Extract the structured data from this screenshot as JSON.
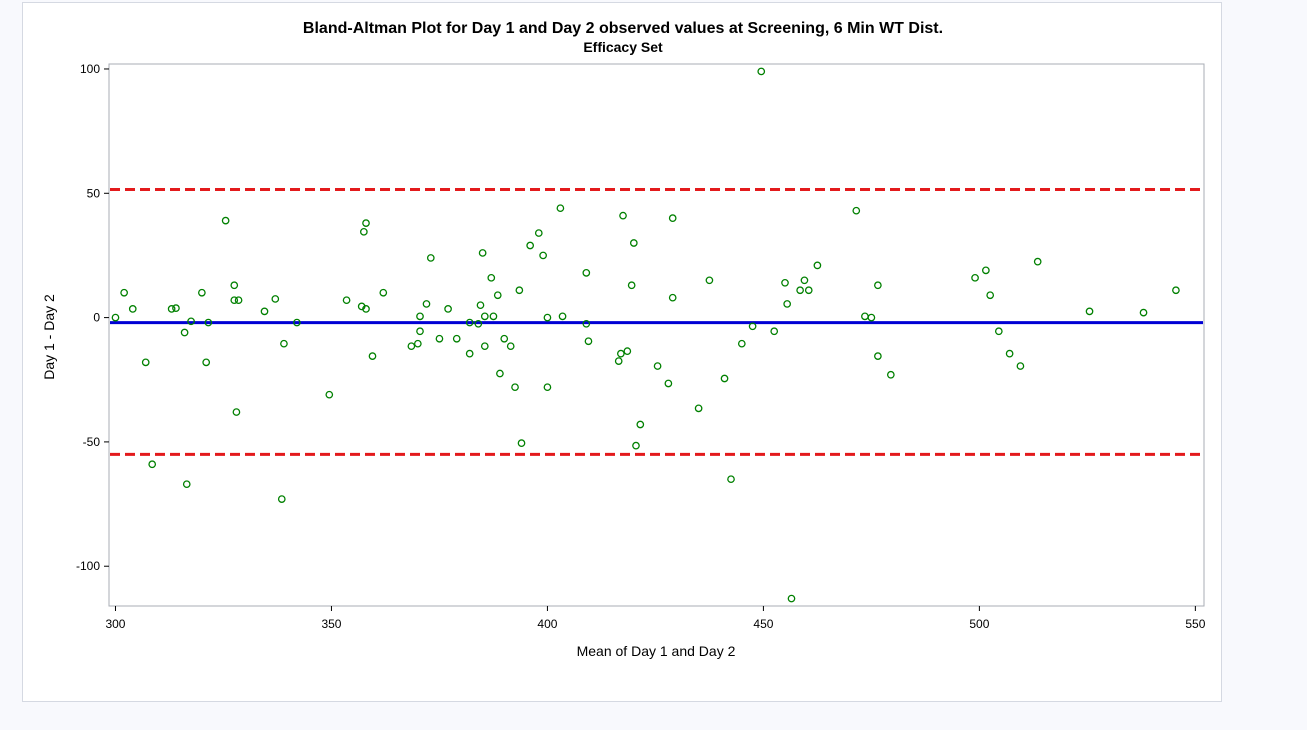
{
  "chart_data": {
    "type": "scatter",
    "title": "Bland-Altman Plot for Day 1 and Day 2 observed values at Screening, 6 Min WT Dist.",
    "subtitle": "Efficacy Set",
    "xlabel": "Mean of Day 1 and Day 2",
    "ylabel": "Day 1 - Day 2",
    "xlim": [
      298.5,
      552
    ],
    "ylim": [
      -116,
      102
    ],
    "xticks": [
      "300",
      "350",
      "400",
      "450",
      "500",
      "550"
    ],
    "yticks": [
      "100",
      "50",
      "0",
      "-50",
      "-100"
    ],
    "grid": false,
    "reference_lines": [
      {
        "name": "Upper limit of agreement",
        "y": 51.5,
        "color": "#e31a1c",
        "style": "dashed"
      },
      {
        "name": "Mean difference",
        "y": -2,
        "color": "#0000d4",
        "style": "solid"
      },
      {
        "name": "Lower limit of agreement",
        "y": -55,
        "color": "#e31a1c",
        "style": "dashed"
      }
    ],
    "marker_color": "#008000",
    "series": [
      {
        "name": "Day 1 - Day 2",
        "points": [
          [
            300,
            0
          ],
          [
            302,
            10
          ],
          [
            304,
            3.5
          ],
          [
            307,
            -18
          ],
          [
            308.5,
            -59
          ],
          [
            313,
            3.5
          ],
          [
            314,
            3.8
          ],
          [
            316,
            -6
          ],
          [
            316.5,
            -67
          ],
          [
            317.5,
            -1.5
          ],
          [
            320,
            10
          ],
          [
            321,
            -18
          ],
          [
            321.5,
            -2
          ],
          [
            325.5,
            39
          ],
          [
            327.5,
            13
          ],
          [
            327.5,
            7
          ],
          [
            328,
            -38
          ],
          [
            328.5,
            7
          ],
          [
            334.5,
            2.5
          ],
          [
            337,
            7.5
          ],
          [
            338.5,
            -73
          ],
          [
            339,
            -10.5
          ],
          [
            342,
            -2
          ],
          [
            349.5,
            -31
          ],
          [
            353.5,
            7
          ],
          [
            357,
            4.5
          ],
          [
            357.5,
            34.5
          ],
          [
            358,
            38
          ],
          [
            358,
            3.5
          ],
          [
            359.5,
            -15.5
          ],
          [
            362,
            10
          ],
          [
            368.5,
            -11.5
          ],
          [
            370,
            -10.5
          ],
          [
            370.5,
            -5.5
          ],
          [
            370.5,
            0.5
          ],
          [
            372,
            5.5
          ],
          [
            373,
            24
          ],
          [
            375,
            -8.5
          ],
          [
            377,
            3.5
          ],
          [
            379,
            -8.5
          ],
          [
            382,
            -2
          ],
          [
            382,
            -14.5
          ],
          [
            384,
            -2.5
          ],
          [
            384.5,
            5
          ],
          [
            385,
            26
          ],
          [
            385.5,
            -11.5
          ],
          [
            385.5,
            0.5
          ],
          [
            387,
            16
          ],
          [
            387.5,
            0.5
          ],
          [
            388.5,
            9
          ],
          [
            389,
            -22.5
          ],
          [
            390,
            -8.5
          ],
          [
            391.5,
            -11.5
          ],
          [
            392.5,
            -28
          ],
          [
            393.5,
            11
          ],
          [
            394,
            -50.5
          ],
          [
            396,
            29
          ],
          [
            398,
            34
          ],
          [
            399,
            25
          ],
          [
            400,
            0
          ],
          [
            400,
            -28
          ],
          [
            403,
            44
          ],
          [
            403.5,
            0.5
          ],
          [
            409,
            18
          ],
          [
            409,
            -2.5
          ],
          [
            409.5,
            -9.5
          ],
          [
            416.5,
            -17.5
          ],
          [
            417,
            -14.5
          ],
          [
            417.5,
            41
          ],
          [
            418.5,
            -13.5
          ],
          [
            419.5,
            13
          ],
          [
            420,
            30
          ],
          [
            420.5,
            -51.5
          ],
          [
            421.5,
            -43
          ],
          [
            425.5,
            -19.5
          ],
          [
            428,
            -26.5
          ],
          [
            429,
            8
          ],
          [
            429,
            40
          ],
          [
            435,
            -36.5
          ],
          [
            437.5,
            15
          ],
          [
            441,
            -24.5
          ],
          [
            442.5,
            -65
          ],
          [
            445,
            -10.5
          ],
          [
            447.5,
            -3.5
          ],
          [
            449.5,
            99
          ],
          [
            452.5,
            -5.5
          ],
          [
            455,
            14
          ],
          [
            455.5,
            5.5
          ],
          [
            456.5,
            -113
          ],
          [
            458.5,
            11
          ],
          [
            459.5,
            15
          ],
          [
            460.5,
            11
          ],
          [
            462.5,
            21
          ],
          [
            471.5,
            43
          ],
          [
            473.5,
            0.5
          ],
          [
            475,
            0
          ],
          [
            476.5,
            -15.5
          ],
          [
            476.5,
            13
          ],
          [
            479.5,
            -23
          ],
          [
            499,
            16
          ],
          [
            501.5,
            19
          ],
          [
            502.5,
            9
          ],
          [
            504.5,
            -5.5
          ],
          [
            507,
            -14.5
          ],
          [
            509.5,
            -19.5
          ],
          [
            513.5,
            22.5
          ],
          [
            525.5,
            2.5
          ],
          [
            538,
            2
          ],
          [
            545.5,
            11
          ]
        ]
      }
    ]
  }
}
